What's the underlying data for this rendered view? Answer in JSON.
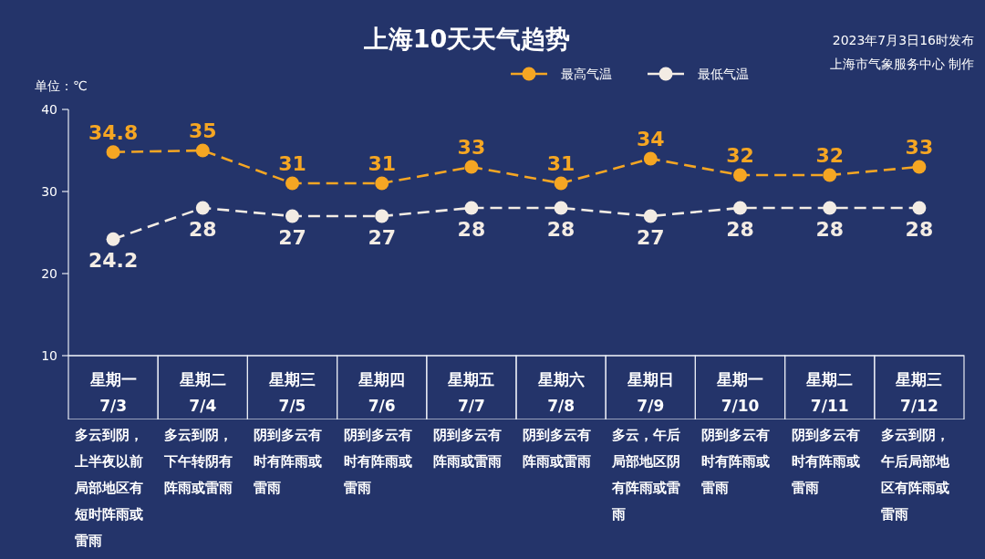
{
  "chart_data": {
    "type": "line",
    "title": "上海10天天气趋势",
    "ylabel": "单位：℃",
    "categories": [
      "星期一\n7/3",
      "星期二\n7/4",
      "星期三\n7/5",
      "星期四\n7/6",
      "星期五\n7/7",
      "星期六\n7/8",
      "星期日\n7/9",
      "星期一\n7/10",
      "星期二\n7/11",
      "星期三\n7/12"
    ],
    "series": [
      {
        "name": "最高气温",
        "color": "#f5a623",
        "values": [
          34.8,
          35,
          31,
          31,
          33,
          31,
          34,
          32,
          32,
          33
        ]
      },
      {
        "name": "最低气温",
        "color": "#f3ece4",
        "values": [
          24.2,
          28,
          27,
          27,
          28,
          28,
          27,
          28,
          28,
          28
        ]
      }
    ],
    "ylim": [
      10,
      40
    ],
    "yticks": [
      10,
      20,
      30,
      40
    ],
    "legend": "top",
    "marker": "circle",
    "line_style": "dashed",
    "data_labels": true,
    "annotations": [
      "2023年7月3日16时发布",
      "上海市气象服务中心 制作",
      "多云到阴，上半夜以前局部地区有短时阵雨或雷雨",
      "多云到阴，下午转阴有阵雨或雷雨",
      "阴到多云有时有阵雨或雷雨",
      "阴到多云有时有阵雨或雷雨",
      "阴到多云有阵雨或雷雨",
      "阴到多云有阵雨或雷雨",
      "多云，午后局部地区阴有阵雨或雷雨",
      "阴到多云有时有阵雨或雷雨",
      "阴到多云有时有阵雨或雷雨",
      "多云到阴，午后局部地区有阵雨或雷雨"
    ]
  }
}
